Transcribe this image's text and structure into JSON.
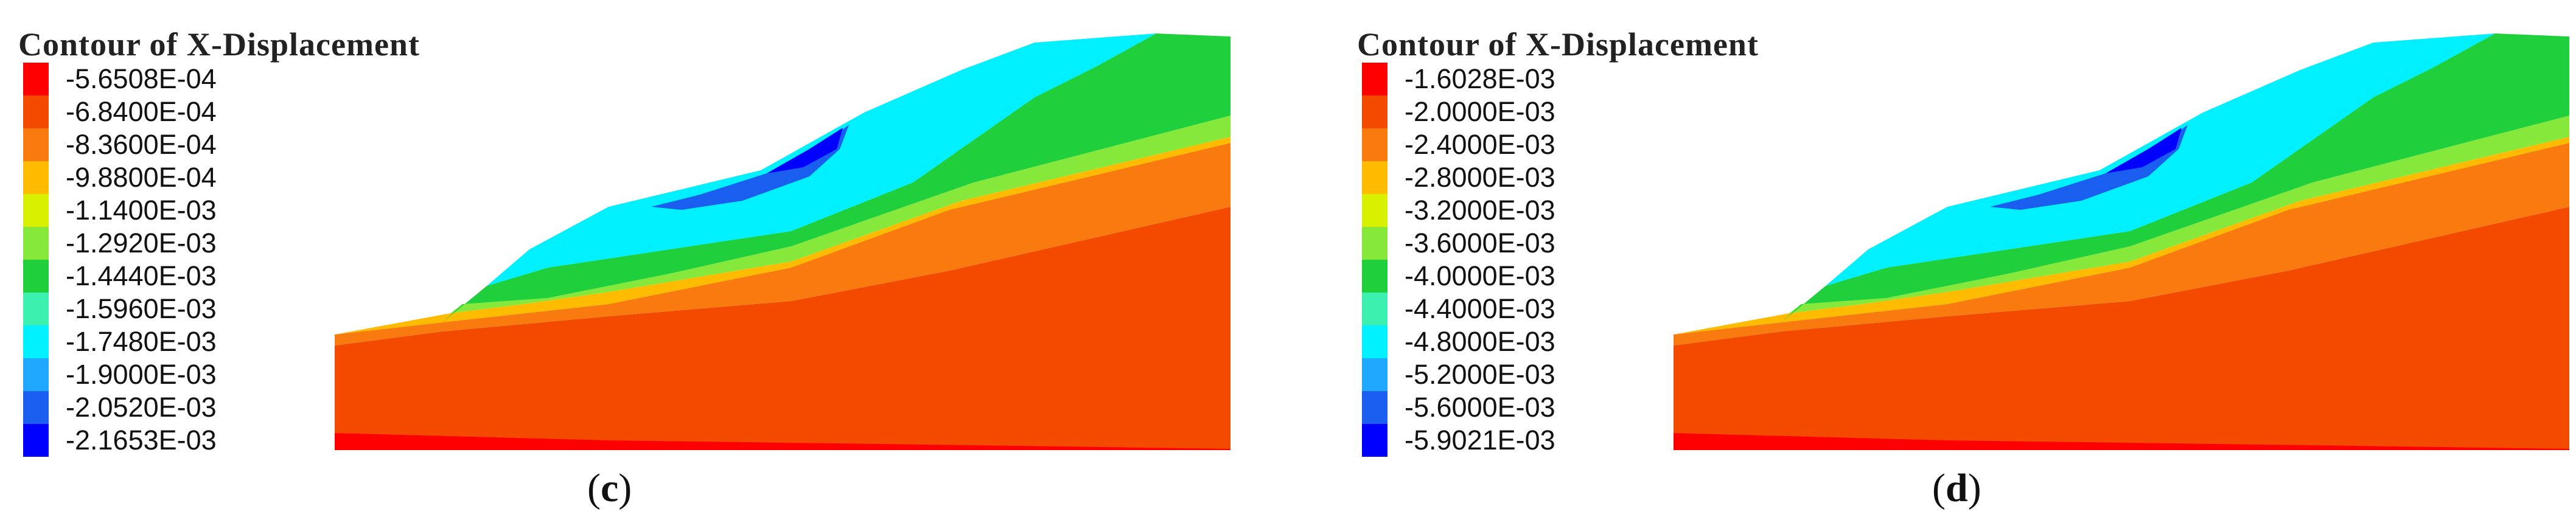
{
  "panels": [
    {
      "title": "Contour of X-Displacement",
      "legend": [
        {
          "label": "-5.6508E-04",
          "color": "#ff0000"
        },
        {
          "label": "-6.8400E-04",
          "color": "#f44a00"
        },
        {
          "label": "-8.3600E-04",
          "color": "#f97b10"
        },
        {
          "label": "-9.8800E-04",
          "color": "#ffbb00"
        },
        {
          "label": "-1.1400E-03",
          "color": "#d6f000"
        },
        {
          "label": "-1.2920E-03",
          "color": "#86e83a"
        },
        {
          "label": "-1.4440E-03",
          "color": "#1fcf3c"
        },
        {
          "label": "-1.5960E-03",
          "color": "#3cf0b0"
        },
        {
          "label": "-1.7480E-03",
          "color": "#00f0ff"
        },
        {
          "label": "-1.9000E-03",
          "color": "#20a8ff"
        },
        {
          "label": "-2.0520E-03",
          "color": "#1a5ef0"
        },
        {
          "label": "-2.1653E-03",
          "color": "#0000ff"
        }
      ],
      "caption_open": "(",
      "caption_letter": "c",
      "caption_close": ")"
    },
    {
      "title": "Contour of X-Displacement",
      "legend": [
        {
          "label": "-1.6028E-03",
          "color": "#ff0000"
        },
        {
          "label": "-2.0000E-03",
          "color": "#f44a00"
        },
        {
          "label": "-2.4000E-03",
          "color": "#f97b10"
        },
        {
          "label": "-2.8000E-03",
          "color": "#ffbb00"
        },
        {
          "label": "-3.2000E-03",
          "color": "#d6f000"
        },
        {
          "label": "-3.6000E-03",
          "color": "#86e83a"
        },
        {
          "label": "-4.0000E-03",
          "color": "#1fcf3c"
        },
        {
          "label": "-4.4000E-03",
          "color": "#3cf0b0"
        },
        {
          "label": "-4.8000E-03",
          "color": "#00f0ff"
        },
        {
          "label": "-5.2000E-03",
          "color": "#20a8ff"
        },
        {
          "label": "-5.6000E-03",
          "color": "#1a5ef0"
        },
        {
          "label": "-5.9021E-03",
          "color": "#0000ff"
        }
      ],
      "caption_open": "(",
      "caption_letter": "d",
      "caption_close": ")"
    }
  ]
}
